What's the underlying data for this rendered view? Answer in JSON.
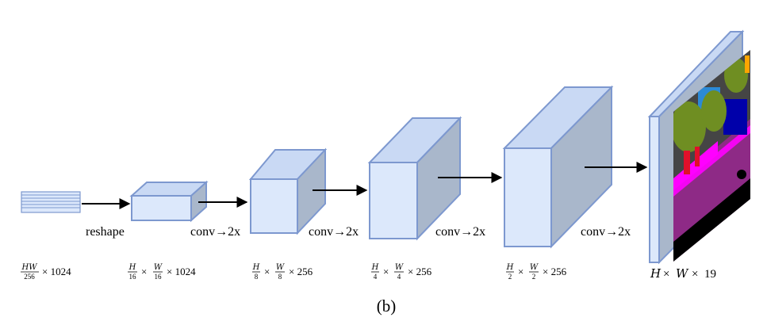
{
  "colors": {
    "box_front": "#dce8fb",
    "box_top": "#c9d9f4",
    "box_side": "#a9b7cb",
    "box_edge": "#7d98cf",
    "arrow": "#000000",
    "seg_purple": "#8e2a86",
    "seg_magenta": "#ff00ff",
    "seg_green": "#6f8e22",
    "seg_gray": "#454545",
    "seg_blue": "#0000aa",
    "seg_sky": "#2c8ad6",
    "seg_red": "#e0102a",
    "seg_orange": "#ffa500",
    "seg_black": "#000000"
  },
  "arrows": {
    "reshape": "reshape",
    "conv1": "conv→2x",
    "conv2": "conv→2x",
    "conv3": "conv→2x",
    "conv4": "conv→2x"
  },
  "dims": {
    "d0": {
      "num": "HW",
      "den": "256",
      "tail": "× 1024"
    },
    "d1": {
      "hnum": "H",
      "hden": "16",
      "wnum": "W",
      "wden": "16",
      "tail": "× 1024"
    },
    "d2": {
      "hnum": "H",
      "hden": "8",
      "wnum": "W",
      "wden": "8",
      "tail": "× 256"
    },
    "d3": {
      "hnum": "H",
      "hden": "4",
      "wnum": "W",
      "wden": "4",
      "tail": "× 256"
    },
    "d4": {
      "hnum": "H",
      "hden": "2",
      "wnum": "W",
      "wden": "2",
      "tail": "× 256"
    },
    "d5": {
      "a": "H",
      "x1": "×",
      "b": "W",
      "x2": "×",
      "c": "19"
    }
  },
  "caption": "(b)"
}
